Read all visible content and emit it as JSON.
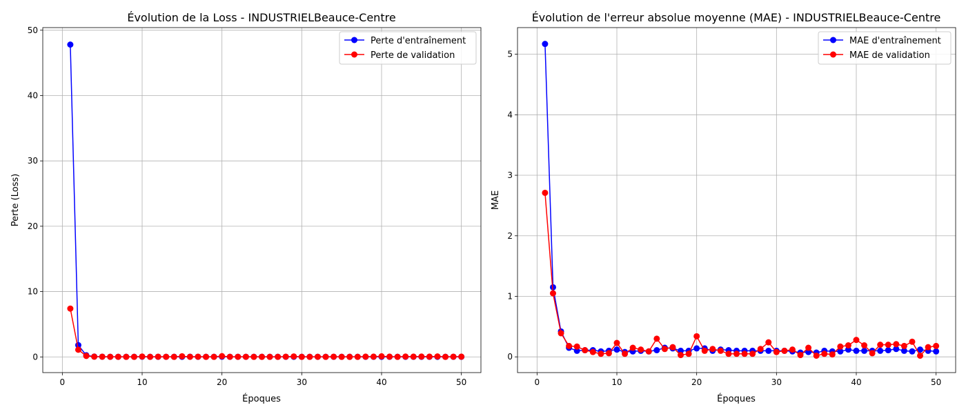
{
  "colors": {
    "train": "#0000ff",
    "validation": "#ff0000",
    "grid": "#b0b0b0",
    "frame": "#000000"
  },
  "chart_data": [
    {
      "type": "line",
      "title": "Évolution de la Loss - INDUSTRIELBeauce-Centre",
      "xlabel": "Époques",
      "ylabel": "Perte (Loss)",
      "xlim": [
        -2.45,
        52.45
      ],
      "ylim": [
        -2.4,
        50.4
      ],
      "xticks": [
        0,
        10,
        20,
        30,
        40,
        50
      ],
      "yticks": [
        0,
        10,
        20,
        30,
        40,
        50
      ],
      "grid": true,
      "legend_position": "top-right",
      "x": [
        1,
        2,
        3,
        4,
        5,
        6,
        7,
        8,
        9,
        10,
        11,
        12,
        13,
        14,
        15,
        16,
        17,
        18,
        19,
        20,
        21,
        22,
        23,
        24,
        25,
        26,
        27,
        28,
        29,
        30,
        31,
        32,
        33,
        34,
        35,
        36,
        37,
        38,
        39,
        40,
        41,
        42,
        43,
        44,
        45,
        46,
        47,
        48,
        49,
        50
      ],
      "series": [
        {
          "name": "Perte d'entraînement",
          "color": "#0000ff",
          "marker": "circle",
          "values": [
            47.8,
            1.8,
            0.25,
            0.05,
            0.03,
            0.02,
            0.02,
            0.02,
            0.02,
            0.03,
            0.02,
            0.02,
            0.02,
            0.02,
            0.02,
            0.03,
            0.02,
            0.02,
            0.02,
            0.03,
            0.02,
            0.02,
            0.02,
            0.02,
            0.02,
            0.02,
            0.02,
            0.02,
            0.02,
            0.02,
            0.02,
            0.02,
            0.02,
            0.02,
            0.02,
            0.02,
            0.02,
            0.02,
            0.02,
            0.02,
            0.02,
            0.02,
            0.02,
            0.02,
            0.02,
            0.02,
            0.02,
            0.02,
            0.02,
            0.02
          ]
        },
        {
          "name": "Perte de validation",
          "color": "#ff0000",
          "marker": "circle",
          "values": [
            7.4,
            1.1,
            0.15,
            0.04,
            0.03,
            0.02,
            0.02,
            0.01,
            0.01,
            0.06,
            0.01,
            0.03,
            0.02,
            0.01,
            0.1,
            0.02,
            0.03,
            0.01,
            0.01,
            0.12,
            0.02,
            0.02,
            0.02,
            0.01,
            0.01,
            0.01,
            0.01,
            0.03,
            0.07,
            0.01,
            0.01,
            0.02,
            0.01,
            0.03,
            0.01,
            0.01,
            0.01,
            0.04,
            0.04,
            0.09,
            0.04,
            0.01,
            0.05,
            0.04,
            0.05,
            0.04,
            0.07,
            0.01,
            0.03,
            0.04
          ]
        }
      ]
    },
    {
      "type": "line",
      "title": "Évolution de l'erreur absolue moyenne (MAE) - INDUSTRIELBeauce-Centre",
      "xlabel": "Époques",
      "ylabel": "MAE",
      "xlim": [
        -2.45,
        52.45
      ],
      "ylim": [
        -0.26,
        5.44
      ],
      "xticks": [
        0,
        10,
        20,
        30,
        40,
        50
      ],
      "yticks": [
        0,
        1,
        2,
        3,
        4,
        5
      ],
      "grid": true,
      "legend_position": "top-right",
      "x": [
        1,
        2,
        3,
        4,
        5,
        6,
        7,
        8,
        9,
        10,
        11,
        12,
        13,
        14,
        15,
        16,
        17,
        18,
        19,
        20,
        21,
        22,
        23,
        24,
        25,
        26,
        27,
        28,
        29,
        30,
        31,
        32,
        33,
        34,
        35,
        36,
        37,
        38,
        39,
        40,
        41,
        42,
        43,
        44,
        45,
        46,
        47,
        48,
        49,
        50
      ],
      "series": [
        {
          "name": "MAE d'entraînement",
          "color": "#0000ff",
          "marker": "circle",
          "values": [
            5.17,
            1.15,
            0.42,
            0.15,
            0.1,
            0.11,
            0.11,
            0.09,
            0.1,
            0.12,
            0.08,
            0.09,
            0.1,
            0.09,
            0.11,
            0.15,
            0.14,
            0.1,
            0.1,
            0.14,
            0.14,
            0.1,
            0.12,
            0.11,
            0.1,
            0.1,
            0.1,
            0.1,
            0.1,
            0.1,
            0.1,
            0.09,
            0.07,
            0.08,
            0.07,
            0.1,
            0.09,
            0.09,
            0.12,
            0.1,
            0.1,
            0.1,
            0.1,
            0.11,
            0.13,
            0.1,
            0.09,
            0.12,
            0.1,
            0.09
          ]
        },
        {
          "name": "MAE de validation",
          "color": "#ff0000",
          "marker": "circle",
          "values": [
            2.71,
            1.05,
            0.39,
            0.18,
            0.17,
            0.11,
            0.08,
            0.05,
            0.06,
            0.23,
            0.05,
            0.15,
            0.12,
            0.09,
            0.3,
            0.13,
            0.16,
            0.03,
            0.05,
            0.34,
            0.1,
            0.13,
            0.1,
            0.05,
            0.05,
            0.05,
            0.05,
            0.13,
            0.24,
            0.08,
            0.1,
            0.12,
            0.03,
            0.15,
            0.02,
            0.05,
            0.04,
            0.17,
            0.19,
            0.28,
            0.19,
            0.06,
            0.2,
            0.2,
            0.21,
            0.18,
            0.25,
            0.02,
            0.16,
            0.18
          ]
        }
      ]
    }
  ]
}
